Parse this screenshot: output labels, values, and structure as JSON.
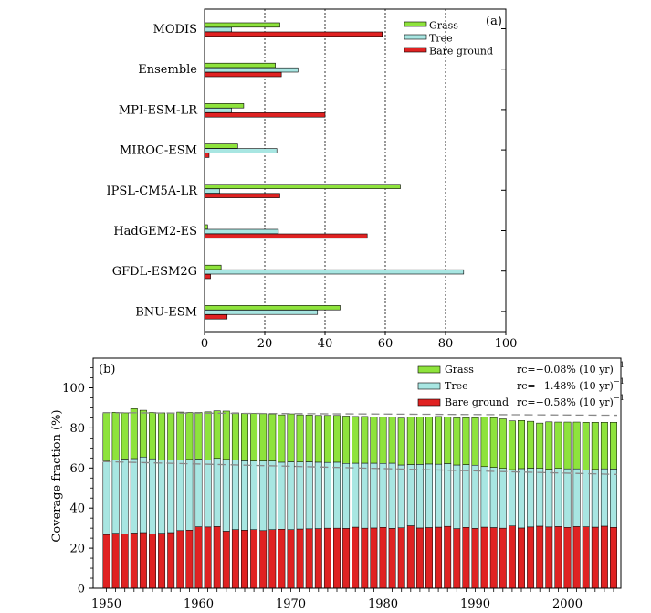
{
  "colors": {
    "grass": "#8ee33c",
    "tree": "#a8e6e2",
    "bare": "#e02222",
    "axis": "#000000"
  },
  "chart_data": [
    {
      "type": "bar",
      "orientation": "horizontal",
      "panel_label": "(a)",
      "xlim": [
        0,
        100
      ],
      "xticks": [
        "0",
        "20",
        "40",
        "60",
        "80",
        "100"
      ],
      "grid": "vertical dotted at 20, 40, 60, 80",
      "legend_position": "top-right",
      "categories": [
        "MODIS",
        "Ensemble",
        "MPI-ESM-LR",
        "MIROC-ESM",
        "IPSL-CM5A-LR",
        "HadGEM2-ES",
        "GFDL-ESM2G",
        "BNU-ESM"
      ],
      "series": [
        {
          "name": "Grass",
          "values": [
            25,
            23.5,
            13,
            11,
            65,
            1,
            5.5,
            45
          ]
        },
        {
          "name": "Tree",
          "values": [
            9,
            31,
            9,
            24,
            5,
            24.5,
            86,
            37.5
          ]
        },
        {
          "name": "Bare ground",
          "values": [
            59,
            25.5,
            40,
            1.5,
            25,
            54,
            2,
            7.5
          ]
        }
      ]
    },
    {
      "type": "bar",
      "stacked": true,
      "panel_label": "(b)",
      "ylabel": "Coverage fraction (%)",
      "ylim": [
        0,
        110
      ],
      "yticks": [
        "0",
        "20",
        "40",
        "60",
        "80",
        "100"
      ],
      "xticks": [
        "1950",
        "1960",
        "1970",
        "1980",
        "1990",
        "2000"
      ],
      "legend_position": "top-right",
      "years": [
        1950,
        1951,
        1952,
        1953,
        1954,
        1955,
        1956,
        1957,
        1958,
        1959,
        1960,
        1961,
        1962,
        1963,
        1964,
        1965,
        1966,
        1967,
        1968,
        1969,
        1970,
        1971,
        1972,
        1973,
        1974,
        1975,
        1976,
        1977,
        1978,
        1979,
        1980,
        1981,
        1982,
        1983,
        1984,
        1985,
        1986,
        1987,
        1988,
        1989,
        1990,
        1991,
        1992,
        1993,
        1994,
        1995,
        1996,
        1997,
        1998,
        1999,
        2000,
        2001,
        2002,
        2003,
        2004,
        2005
      ],
      "series": [
        {
          "name": "Bare ground",
          "trend": "rc=−0.58% (10 yr)",
          "values": [
            26.8,
            27.5,
            27,
            27.6,
            27.8,
            27.2,
            27.5,
            27.8,
            28.8,
            29,
            30.7,
            30.6,
            30.8,
            28.5,
            29.3,
            29,
            29.3,
            28.8,
            29.3,
            29.5,
            29.3,
            29.6,
            29.7,
            29.8,
            30,
            30,
            29.9,
            30.5,
            30,
            30.1,
            30.4,
            29.9,
            30.2,
            31.2,
            30.1,
            30.3,
            30.5,
            30.9,
            29.8,
            30.4,
            29.9,
            30.5,
            30.3,
            30,
            31.1,
            30.1,
            30.6,
            31,
            30.6,
            30.8,
            30.4,
            30.8,
            30.7,
            30.5,
            31,
            30.4
          ]
        },
        {
          "name": "Tree",
          "trend": "rc=−1.48% (10 yr)",
          "values": [
            36.7,
            36.5,
            37.5,
            37.1,
            37.7,
            37.4,
            36.5,
            36.3,
            35.2,
            35.3,
            33.8,
            33.5,
            34,
            35.8,
            34.7,
            34.6,
            34.2,
            34.7,
            34.2,
            33.4,
            33.8,
            33.4,
            33.4,
            33.1,
            32.8,
            32.9,
            32.4,
            31.9,
            32.4,
            32.3,
            31.9,
            32.5,
            31.3,
            30.5,
            31.7,
            31.7,
            31.4,
            31.3,
            31.7,
            31.3,
            31.5,
            30.2,
            30,
            29.8,
            28.1,
            29.6,
            29.3,
            28.8,
            28.8,
            29,
            29.2,
            28.8,
            28.4,
            28.8,
            28.6,
            29.1
          ]
        },
        {
          "name": "Grass",
          "trend": "rc=−0.08% (10 yr)",
          "values": [
            24.2,
            23.8,
            23,
            24.9,
            23.3,
            23.1,
            23.5,
            23.4,
            23.9,
            23.4,
            23.2,
            23.9,
            23.7,
            24.1,
            23.5,
            23.6,
            23.7,
            23.6,
            23.4,
            23.6,
            23.9,
            23.5,
            23.3,
            23.3,
            23.4,
            23.3,
            23.6,
            23.3,
            23.3,
            23.1,
            23,
            23.1,
            23.4,
            23.6,
            23.7,
            23.3,
            23.8,
            23.3,
            23.5,
            23.4,
            23.7,
            24.6,
            24.8,
            24.7,
            24.3,
            24,
            23.4,
            22.6,
            23.6,
            23.1,
            23.3,
            23.3,
            23.7,
            23.5,
            23.2,
            23.3
          ]
        }
      ],
      "trend_lines": [
        {
          "series": "Grass",
          "start": 87.6,
          "end": 86.3
        },
        {
          "series": "Tree",
          "start": 63.2,
          "end": 56.8
        }
      ]
    }
  ]
}
